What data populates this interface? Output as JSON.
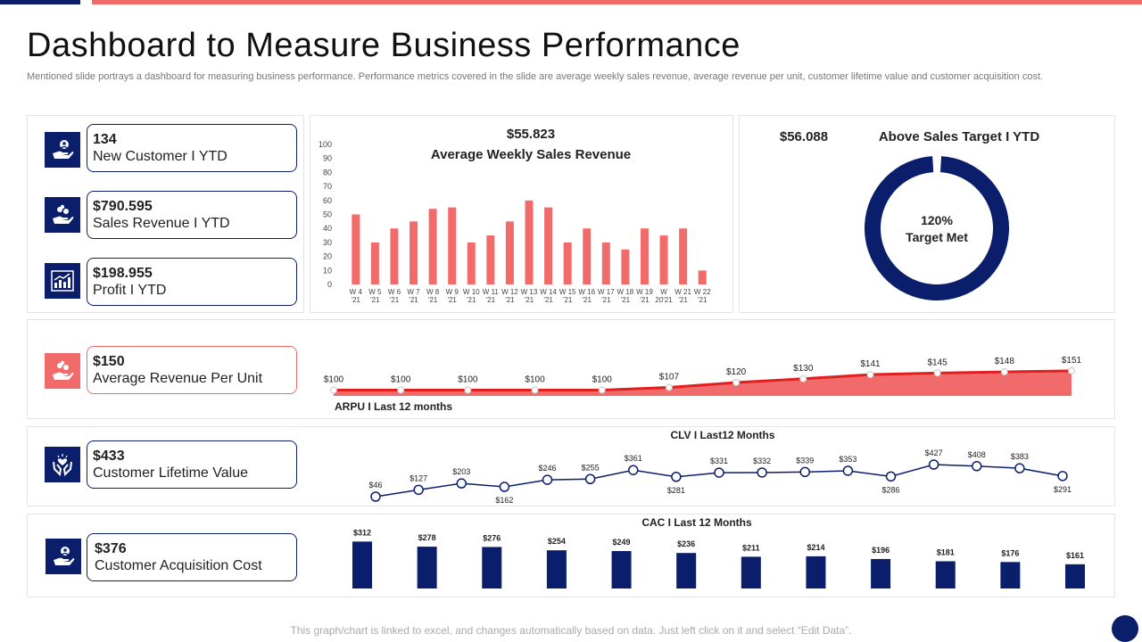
{
  "header": {
    "title": "Dashboard to Measure Business Performance",
    "subtitle": "Mentioned slide portrays a dashboard for measuring business performance. Performance metrics covered in the slide are average weekly sales revenue, average revenue per unit, customer lifetime value and customer acquisition cost."
  },
  "colors": {
    "navy": "#0b1e6b",
    "coral": "#f26b6b",
    "line_red": "#e21f1f"
  },
  "kpis": [
    {
      "value": "134",
      "label": "New Customer I YTD",
      "icon": "hand-user-icon"
    },
    {
      "value": "$790.595",
      "label": "Sales Revenue I YTD",
      "icon": "hand-coins-icon"
    },
    {
      "value": "$198.955",
      "label": "Profit I YTD",
      "icon": "bar-growth-icon"
    },
    {
      "value": "$150",
      "label": "Average Revenue  Per Unit",
      "icon": "hand-coins-icon"
    },
    {
      "value": "$433",
      "label": "Customer  Lifetime Value",
      "icon": "hands-heart-icon"
    },
    {
      "value": "$376",
      "label": "Customer Acquisition Cost",
      "icon": "hand-user-icon"
    }
  ],
  "footer": {
    "text": "This graph/chart is linked to excel, and changes automatically based on data. Just left click on it and select “Edit Data”."
  },
  "chart_data": [
    {
      "id": "weekly",
      "type": "bar",
      "headline": "$55.823",
      "title": "Average Weekly Sales Revenue",
      "categories": [
        [
          "W 4",
          "'21"
        ],
        [
          "W 5",
          "'21"
        ],
        [
          "W 6",
          "'21"
        ],
        [
          "W 7",
          "'21"
        ],
        [
          "W 8",
          "'21"
        ],
        [
          "W 9",
          "'21"
        ],
        [
          "W 10",
          "'21"
        ],
        [
          "W 11",
          "'21"
        ],
        [
          "W 12",
          "'21"
        ],
        [
          "W 13",
          "'21"
        ],
        [
          "W 14",
          "'21"
        ],
        [
          "W 15",
          "'21"
        ],
        [
          "W 16",
          "'21"
        ],
        [
          "W 17",
          "'21"
        ],
        [
          "W 18",
          "'21"
        ],
        [
          "W 19",
          "'21"
        ],
        [
          "W",
          "20'21"
        ],
        [
          "W 21",
          "'21"
        ],
        [
          "W 22",
          "'21"
        ]
      ],
      "values": [
        50,
        30,
        40,
        45,
        54,
        55,
        30,
        35,
        45,
        60,
        55,
        30,
        40,
        30,
        25,
        40,
        35,
        40,
        10
      ],
      "yticks": [
        "0",
        "10",
        "20",
        "30",
        "40",
        "50",
        "60",
        "70",
        "80",
        "90",
        "100"
      ],
      "ylim": [
        0,
        100
      ]
    },
    {
      "id": "target",
      "type": "pie",
      "headline": "$56.088",
      "title": "Above Sales Target I YTD",
      "center_pct": "120%",
      "center_label": "Target Met",
      "values": [
        98,
        2
      ]
    },
    {
      "id": "arpu",
      "type": "area",
      "title": "ARPU I Last 12 months",
      "values": [
        100,
        100,
        100,
        100,
        100,
        107,
        120,
        130,
        141,
        145,
        148,
        151
      ],
      "labels": [
        "$100",
        "$100",
        "$100",
        "$100",
        "$100",
        "$107",
        "$120",
        "$130",
        "$141",
        "$145",
        "$148",
        "$151"
      ],
      "ylim": [
        0,
        160
      ]
    },
    {
      "id": "clv",
      "type": "line",
      "title": "CLV I Last12 Months",
      "values": [
        46,
        127,
        203,
        162,
        246,
        255,
        361,
        281,
        331,
        332,
        339,
        353,
        286,
        427,
        408,
        383,
        291
      ],
      "labels": [
        "$46",
        "$127",
        "$203",
        "$162",
        "$246",
        "$255",
        "$361",
        "$281",
        "$331",
        "$332",
        "$339",
        "$353",
        "$286",
        "$427",
        "$408",
        "$383",
        "$291"
      ],
      "ylim": [
        0,
        450
      ]
    },
    {
      "id": "cac",
      "type": "bar",
      "title": "CAC I Last 12 Months",
      "values": [
        312,
        278,
        276,
        254,
        249,
        236,
        211,
        214,
        196,
        181,
        176,
        161
      ],
      "labels": [
        "$312",
        "$278",
        "$276",
        "$254",
        "$249",
        "$236",
        "$211",
        "$214",
        "$196",
        "$181",
        "$176",
        "$161"
      ],
      "ylim": [
        0,
        320
      ]
    }
  ]
}
